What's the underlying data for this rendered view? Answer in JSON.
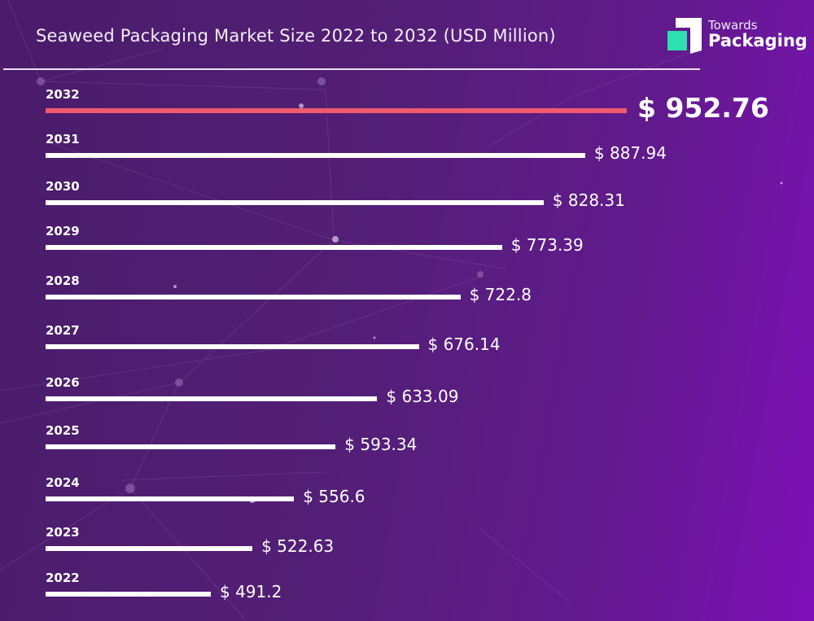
{
  "header": {
    "title": "Seaweed Packaging Market Size 2022 to 2032 (USD Million)"
  },
  "logo": {
    "line1": "Towards",
    "line2": "Packaging",
    "accent_color": "#2de0b0"
  },
  "colors": {
    "bar": "#ffffff",
    "highlight_bar": "#f25a6e"
  },
  "chart_data": {
    "type": "bar",
    "orientation": "horizontal",
    "title": "Seaweed Packaging Market Size 2022 to 2032 (USD Million)",
    "xlabel": "",
    "ylabel": "",
    "categories": [
      "2032",
      "2031",
      "2030",
      "2029",
      "2028",
      "2027",
      "2026",
      "2025",
      "2024",
      "2023",
      "2022"
    ],
    "values": [
      952.76,
      887.94,
      828.31,
      773.39,
      722.8,
      676.14,
      633.09,
      593.34,
      556.6,
      522.63,
      491.2
    ],
    "labels": [
      "$ 952.76",
      "$ 887.94",
      "$ 828.31",
      "$ 773.39",
      "$ 722.8",
      "$ 676.14",
      "$ 633.09",
      "$ 593.34",
      "$ 556.6",
      "$ 522.63",
      "$ 491.2"
    ],
    "highlight": "2032",
    "grid": false,
    "legend": "none"
  }
}
